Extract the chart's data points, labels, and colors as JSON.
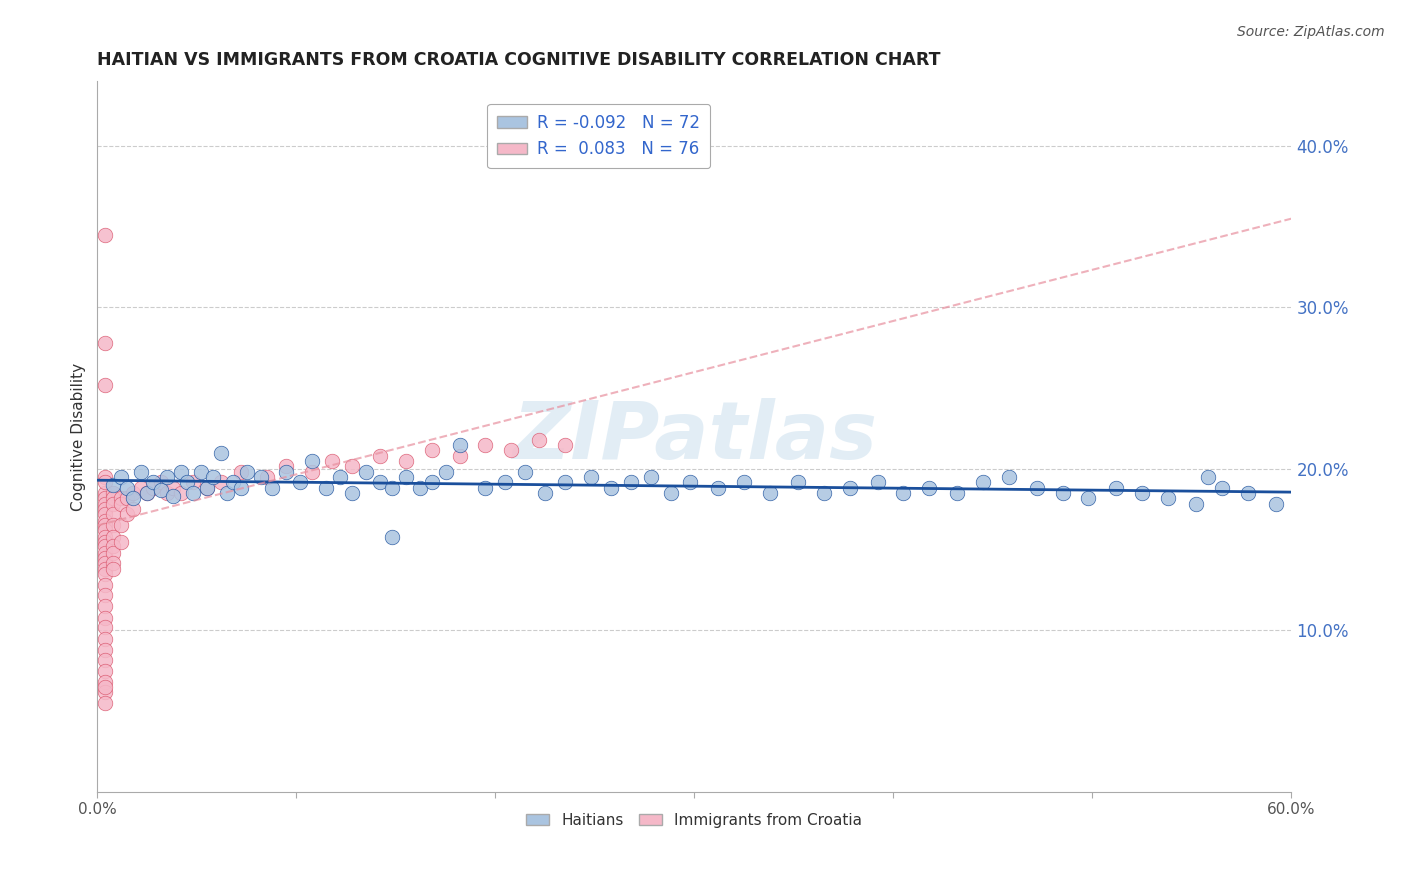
{
  "title": "HAITIAN VS IMMIGRANTS FROM CROATIA COGNITIVE DISABILITY CORRELATION CHART",
  "source": "Source: ZipAtlas.com",
  "ylabel": "Cognitive Disability",
  "xlim": [
    0.0,
    0.6
  ],
  "ylim": [
    0.0,
    0.44
  ],
  "xticks": [
    0.0,
    0.1,
    0.2,
    0.3,
    0.4,
    0.5,
    0.6
  ],
  "xticklabels": [
    "0.0%",
    "",
    "",
    "",
    "",
    "",
    "60.0%"
  ],
  "yticks_right": [
    0.1,
    0.2,
    0.3,
    0.4
  ],
  "ytick_right_labels": [
    "10.0%",
    "20.0%",
    "30.0%",
    "40.0%"
  ],
  "grid_color": "#cccccc",
  "background_color": "#ffffff",
  "watermark": "ZIPatlas",
  "color_blue": "#aac4e0",
  "color_blue_line": "#1a4f9c",
  "color_pink": "#f5b8c8",
  "color_pink_line": "#d9536a",
  "color_pink_dash": "#e8909f",
  "legend_text_color": "#3366cc",
  "blue_x": [
    0.008,
    0.012,
    0.015,
    0.018,
    0.022,
    0.025,
    0.028,
    0.032,
    0.035,
    0.038,
    0.042,
    0.045,
    0.048,
    0.052,
    0.055,
    0.058,
    0.062,
    0.065,
    0.068,
    0.072,
    0.075,
    0.082,
    0.088,
    0.095,
    0.102,
    0.108,
    0.115,
    0.122,
    0.128,
    0.135,
    0.142,
    0.148,
    0.155,
    0.162,
    0.168,
    0.175,
    0.182,
    0.195,
    0.205,
    0.215,
    0.225,
    0.235,
    0.248,
    0.258,
    0.268,
    0.278,
    0.288,
    0.298,
    0.312,
    0.325,
    0.338,
    0.352,
    0.365,
    0.378,
    0.392,
    0.405,
    0.418,
    0.432,
    0.445,
    0.458,
    0.472,
    0.485,
    0.498,
    0.512,
    0.525,
    0.538,
    0.552,
    0.565,
    0.578,
    0.592,
    0.558,
    0.148
  ],
  "blue_y": [
    0.19,
    0.195,
    0.188,
    0.182,
    0.198,
    0.185,
    0.192,
    0.187,
    0.195,
    0.183,
    0.198,
    0.192,
    0.185,
    0.198,
    0.188,
    0.195,
    0.21,
    0.185,
    0.192,
    0.188,
    0.198,
    0.195,
    0.188,
    0.198,
    0.192,
    0.205,
    0.188,
    0.195,
    0.185,
    0.198,
    0.192,
    0.188,
    0.195,
    0.188,
    0.192,
    0.198,
    0.215,
    0.188,
    0.192,
    0.198,
    0.185,
    0.192,
    0.195,
    0.188,
    0.192,
    0.195,
    0.185,
    0.192,
    0.188,
    0.192,
    0.185,
    0.192,
    0.185,
    0.188,
    0.192,
    0.185,
    0.188,
    0.185,
    0.192,
    0.195,
    0.188,
    0.185,
    0.182,
    0.188,
    0.185,
    0.182,
    0.178,
    0.188,
    0.185,
    0.178,
    0.195,
    0.158
  ],
  "pink_x": [
    0.004,
    0.004,
    0.004,
    0.004,
    0.004,
    0.004,
    0.004,
    0.004,
    0.004,
    0.004,
    0.004,
    0.004,
    0.004,
    0.004,
    0.004,
    0.004,
    0.004,
    0.004,
    0.004,
    0.004,
    0.004,
    0.004,
    0.004,
    0.004,
    0.004,
    0.004,
    0.004,
    0.004,
    0.004,
    0.004,
    0.008,
    0.008,
    0.008,
    0.008,
    0.008,
    0.008,
    0.008,
    0.008,
    0.008,
    0.008,
    0.012,
    0.012,
    0.012,
    0.012,
    0.015,
    0.015,
    0.018,
    0.018,
    0.022,
    0.025,
    0.028,
    0.032,
    0.035,
    0.038,
    0.042,
    0.048,
    0.055,
    0.062,
    0.072,
    0.085,
    0.095,
    0.108,
    0.118,
    0.128,
    0.142,
    0.155,
    0.168,
    0.182,
    0.195,
    0.208,
    0.222,
    0.235,
    0.004,
    0.004,
    0.004,
    0.004
  ],
  "pink_y": [
    0.185,
    0.182,
    0.178,
    0.175,
    0.172,
    0.168,
    0.165,
    0.162,
    0.195,
    0.192,
    0.158,
    0.155,
    0.152,
    0.148,
    0.145,
    0.142,
    0.138,
    0.135,
    0.128,
    0.122,
    0.115,
    0.108,
    0.102,
    0.095,
    0.088,
    0.082,
    0.075,
    0.068,
    0.062,
    0.055,
    0.185,
    0.182,
    0.178,
    0.172,
    0.165,
    0.158,
    0.152,
    0.148,
    0.142,
    0.138,
    0.182,
    0.178,
    0.165,
    0.155,
    0.182,
    0.172,
    0.185,
    0.175,
    0.188,
    0.185,
    0.188,
    0.192,
    0.185,
    0.188,
    0.185,
    0.192,
    0.188,
    0.192,
    0.198,
    0.195,
    0.202,
    0.198,
    0.205,
    0.202,
    0.208,
    0.205,
    0.212,
    0.208,
    0.215,
    0.212,
    0.218,
    0.215,
    0.345,
    0.278,
    0.252,
    0.065
  ]
}
